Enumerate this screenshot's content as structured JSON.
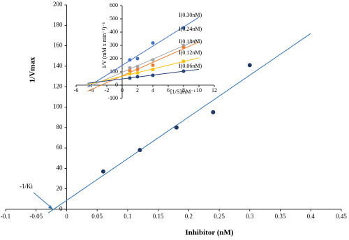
{
  "chart_data": [
    {
      "type": "scatter",
      "x_label": "Inhibitor (nM)",
      "y_label": "1/Vmax",
      "annotation": "-1/Ki",
      "x": [
        0.06,
        0.12,
        0.18,
        0.24,
        0.3
      ],
      "series": [
        {
          "name": "1/Vmax",
          "color": "#1f3864",
          "values": [
            37,
            58,
            80,
            95,
            141
          ]
        }
      ],
      "trendline_color": "#2e75b6",
      "trendline_x": [
        -0.03,
        0.4
      ],
      "xlim": [
        -0.1,
        0.45
      ],
      "xticks": [
        -0.1,
        -0.05,
        0,
        0.05,
        0.1,
        0.15,
        0.2,
        0.25,
        0.3,
        0.35,
        0.4,
        0.45
      ],
      "ylim": [
        0,
        200
      ],
      "yticks": [
        0,
        20,
        40,
        60,
        80,
        100,
        120,
        140,
        160,
        180,
        200
      ]
    },
    {
      "type": "scatter",
      "x_label": "[1/S]mM⁻¹",
      "y_label": "1/V (mM x min⁻¹)⁻¹",
      "x": [
        1,
        2,
        4,
        8
      ],
      "series": [
        {
          "name": "I(0.30nM)",
          "color": "#4472c4",
          "values": [
            190,
            200,
            318,
            432
          ]
        },
        {
          "name": "I(0.24nM)",
          "color": "#a5a5a5",
          "values": [
            130,
            140,
            190,
            300
          ]
        },
        {
          "name": "I(0.18nM)",
          "color": "#ed7d31",
          "values": [
            110,
            118,
            150,
            284
          ]
        },
        {
          "name": "I(0.12nM)",
          "color": "#ffc000",
          "values": [
            85,
            92,
            118,
            180
          ]
        },
        {
          "name": "I(0.06nM)",
          "color": "#264478",
          "values": [
            53,
            63,
            74,
            105
          ]
        }
      ],
      "trendline_x": [
        -4.5,
        10
      ],
      "xlim": [
        -6,
        12
      ],
      "xticks": [
        -6,
        -4,
        -2,
        0,
        2,
        4,
        6,
        8,
        10,
        12
      ],
      "ylim": [
        -100,
        600
      ],
      "yticks": [
        -100,
        0,
        100,
        200,
        300,
        400,
        500,
        600
      ]
    }
  ]
}
